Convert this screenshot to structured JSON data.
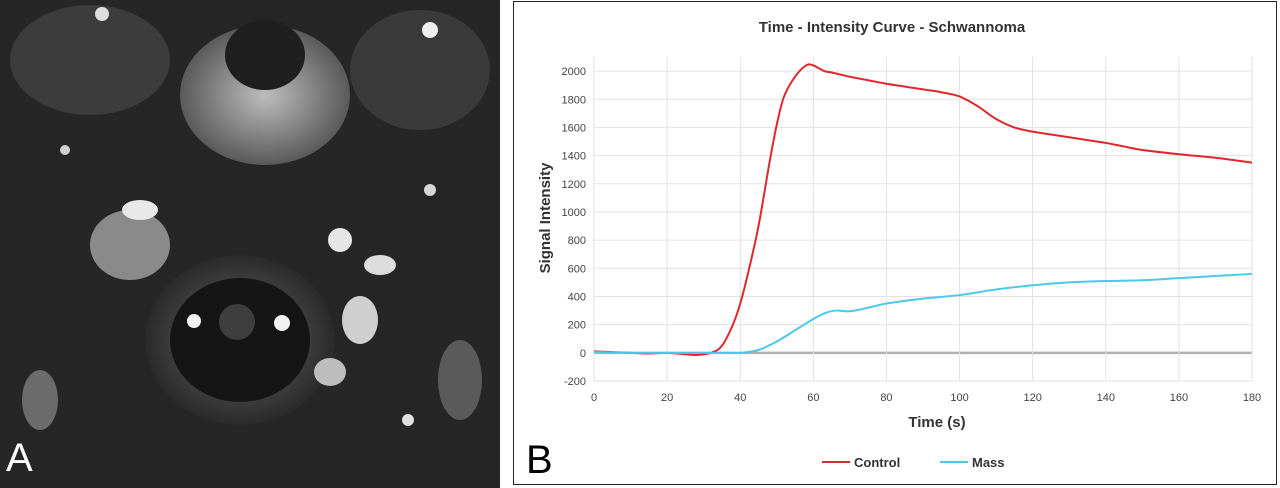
{
  "panel_a": {
    "label": "A"
  },
  "panel_b": {
    "label": "B"
  },
  "chart_data": {
    "type": "line",
    "title": "Time - Intensity Curve - Schwannoma",
    "xlabel": "Time (s)",
    "ylabel": "Signal Intensity",
    "xlim": [
      0,
      180
    ],
    "ylim": [
      -200,
      2100
    ],
    "xticks": [
      0,
      20,
      40,
      60,
      80,
      100,
      120,
      140,
      160,
      180
    ],
    "yticks": [
      -200,
      0,
      200,
      400,
      600,
      800,
      1000,
      1200,
      1400,
      1600,
      1800,
      2000
    ],
    "grid": true,
    "legend_position": "bottom",
    "series": [
      {
        "name": "Control",
        "color": "#e0282c",
        "x": [
          0,
          5,
          10,
          15,
          20,
          25,
          28,
          32,
          35,
          38,
          40,
          42,
          45,
          48,
          50,
          52,
          55,
          58,
          60,
          63,
          65,
          70,
          75,
          80,
          85,
          90,
          95,
          100,
          105,
          110,
          115,
          120,
          125,
          130,
          135,
          140,
          145,
          150,
          160,
          170,
          180
        ],
        "y": [
          10,
          5,
          0,
          -5,
          0,
          -10,
          -15,
          0,
          50,
          200,
          350,
          550,
          900,
          1350,
          1620,
          1820,
          1960,
          2040,
          2040,
          2000,
          1990,
          1960,
          1935,
          1910,
          1890,
          1870,
          1850,
          1820,
          1750,
          1660,
          1600,
          1570,
          1550,
          1530,
          1510,
          1490,
          1465,
          1440,
          1410,
          1385,
          1350
        ]
      },
      {
        "name": "Mass",
        "color": "#4cc8e8",
        "x": [
          0,
          10,
          20,
          30,
          35,
          40,
          45,
          50,
          55,
          60,
          63,
          66,
          70,
          75,
          80,
          90,
          100,
          110,
          120,
          130,
          140,
          150,
          160,
          170,
          180
        ],
        "y": [
          5,
          0,
          0,
          0,
          0,
          0,
          20,
          80,
          160,
          240,
          280,
          300,
          295,
          320,
          350,
          385,
          410,
          450,
          480,
          500,
          510,
          515,
          530,
          545,
          560
        ]
      }
    ]
  }
}
